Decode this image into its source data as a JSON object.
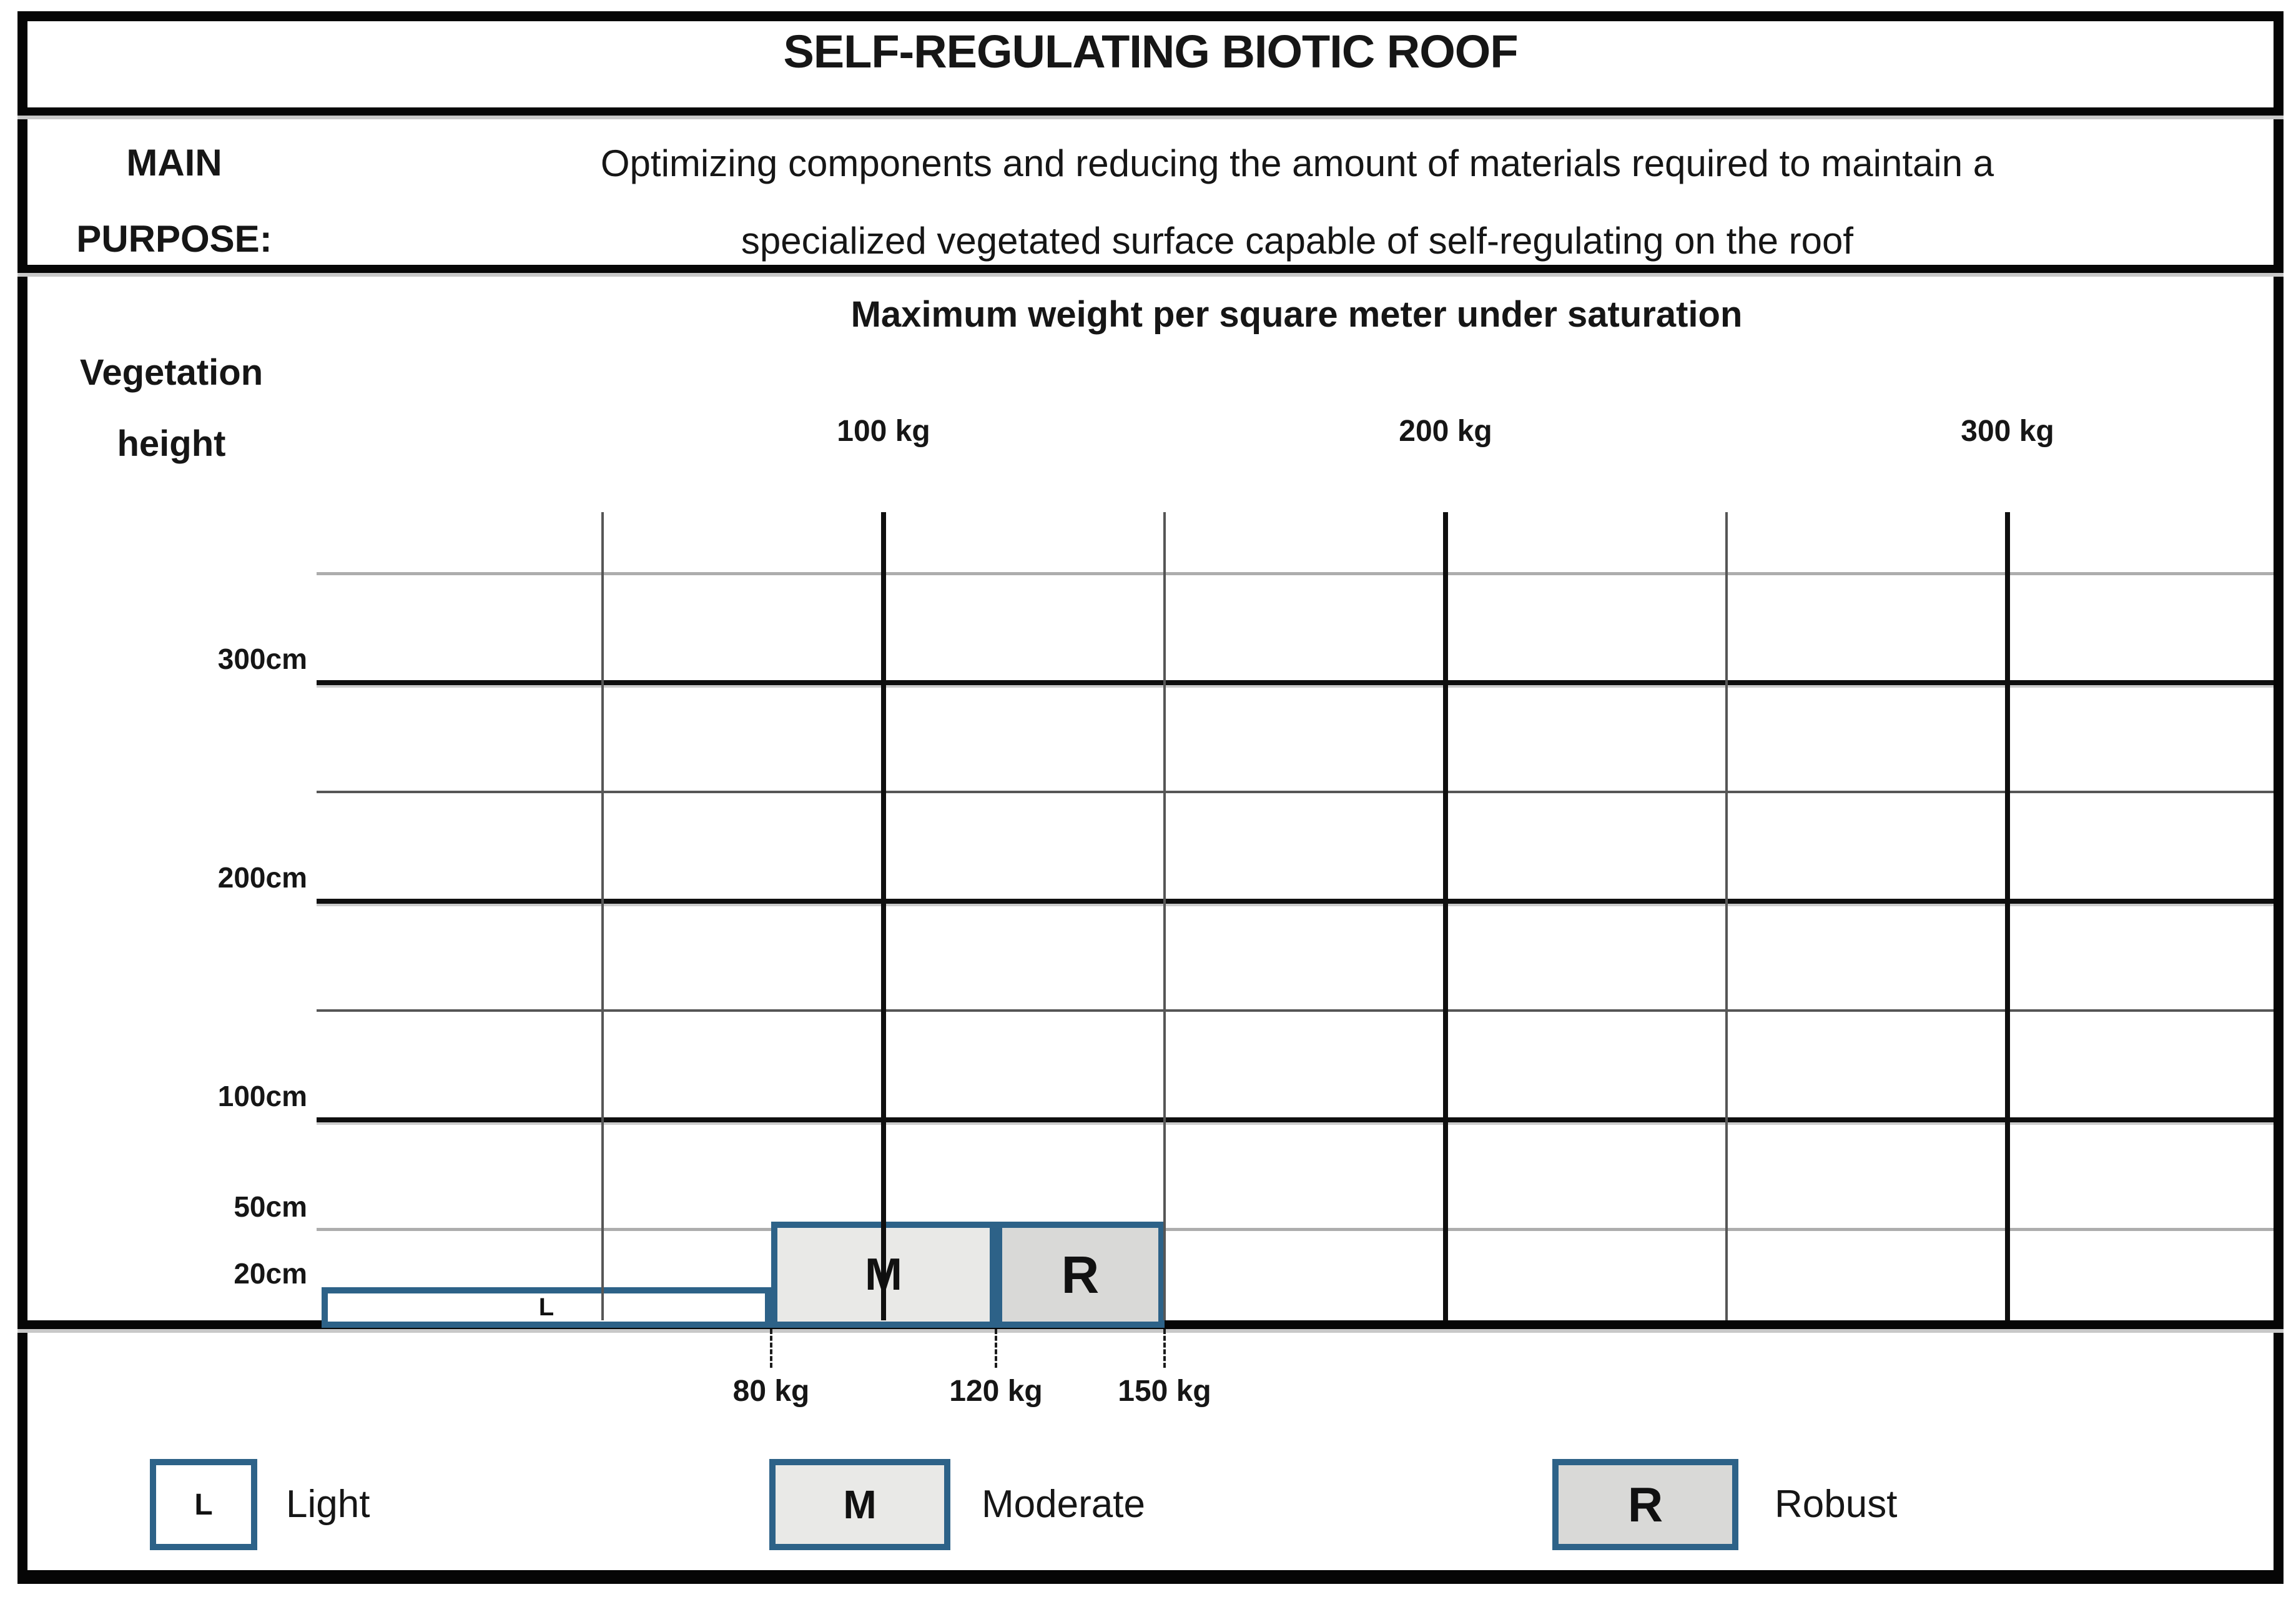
{
  "header": {
    "title": "SELF-REGULATING BIOTIC ROOF"
  },
  "purpose": {
    "label_line1": "MAIN",
    "label_line2": "PURPOSE:",
    "text_line1": "Optimizing components and reducing the amount of materials required to maintain a",
    "text_line2": "specialized vegetated surface capable of self-regulating on the roof"
  },
  "chart_data": {
    "type": "bar",
    "title": "Maximum weight per square meter under saturation",
    "y_axis_label_line1": "Vegetation",
    "y_axis_label_line2": "height",
    "x_unit": "kg",
    "x_range": [
      0,
      345
    ],
    "y_unit": "cm",
    "y_range": [
      0,
      380
    ],
    "x_major_ticks": [
      {
        "value": 100,
        "label": "100 kg"
      },
      {
        "value": 200,
        "label": "200 kg"
      },
      {
        "value": 300,
        "label": "300 kg"
      }
    ],
    "x_minor_ticks": [
      {
        "value": 50
      },
      {
        "value": 150
      },
      {
        "value": 250
      }
    ],
    "y_major_gridlines": [
      {
        "value": 300,
        "label": "300cm"
      },
      {
        "value": 200,
        "label": "200cm"
      },
      {
        "value": 100,
        "label": "100cm"
      }
    ],
    "y_minor_gridlines": [
      {
        "value": 350,
        "tone": "light"
      },
      {
        "value": 250,
        "tone": "dark"
      },
      {
        "value": 150,
        "tone": "dark"
      },
      {
        "value": 50,
        "tone": "light",
        "label": "50cm"
      }
    ],
    "y_extra_labels": [
      {
        "value": 20,
        "label": "20cm"
      }
    ],
    "bars": [
      {
        "code": "L",
        "name": "Light",
        "x_start_kg": 0,
        "x_end_kg": 80,
        "height_cm": 20,
        "fill": "#ffffff"
      },
      {
        "code": "M",
        "name": "Moderate",
        "x_start_kg": 80,
        "x_end_kg": 120,
        "height_cm": 50,
        "fill": "#e9e9e7"
      },
      {
        "code": "R",
        "name": "Robust",
        "x_start_kg": 120,
        "x_end_kg": 150,
        "height_cm": 50,
        "fill": "#d9d9d7"
      }
    ],
    "bottom_ticks": [
      {
        "value": 80,
        "label": "80 kg"
      },
      {
        "value": 120,
        "label": "120 kg"
      },
      {
        "value": 150,
        "label": "150 kg"
      }
    ],
    "legend_position": "bottom",
    "grid": true
  },
  "legend": {
    "items": [
      {
        "code": "L",
        "label": "Light",
        "fill": "#ffffff"
      },
      {
        "code": "M",
        "label": "Moderate",
        "fill": "#e9e9e7"
      },
      {
        "code": "R",
        "label": "Robust",
        "fill": "#d9d9d7"
      }
    ]
  },
  "colors": {
    "bar_border": "#2d6288",
    "grid_major": "#0f0f0f",
    "grid_minor_dark": "#565656",
    "grid_minor_light": "#adadad",
    "frame": "#060606",
    "text": "#161616"
  }
}
